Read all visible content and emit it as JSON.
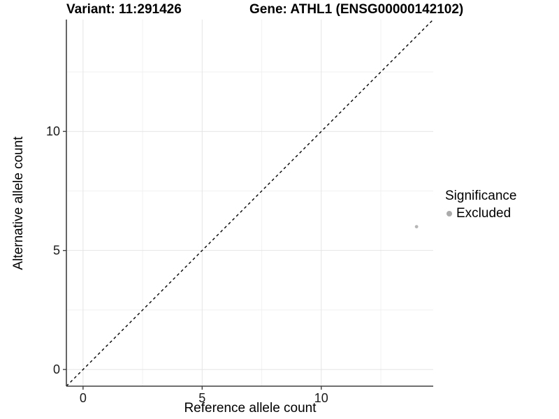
{
  "titles": {
    "variant": "Variant: 11:291426",
    "gene": "Gene: ATHL1 (ENSG00000142102)"
  },
  "chart_data": {
    "type": "scatter",
    "title": "Variant: 11:291426  /  Gene: ATHL1 (ENSG00000142102)",
    "xlabel": "Reference allele count",
    "ylabel": "Alternative allele count",
    "xlim": [
      -0.7,
      14.7
    ],
    "ylim": [
      -0.7,
      14.7
    ],
    "x_major_ticks": [
      0,
      5,
      10
    ],
    "y_major_ticks": [
      0,
      5,
      10
    ],
    "x_minor_ticks": [
      2.5,
      7.5,
      12.5
    ],
    "y_minor_ticks": [
      2.5,
      7.5,
      12.5
    ],
    "grid": "major and minor gridlines on, white panel background",
    "identity_line": {
      "style": "dashed",
      "x1": -0.7,
      "y1": -0.7,
      "x2": 14.7,
      "y2": 14.7,
      "color": "#000000"
    },
    "series": [
      {
        "name": "Excluded",
        "color": "#b6b6b6",
        "points": [
          {
            "x": 14,
            "y": 6
          }
        ]
      }
    ],
    "legend": {
      "title": "Significance",
      "position": "right",
      "entries": [
        {
          "label": "Excluded",
          "color": "#ababab"
        }
      ]
    }
  },
  "colors": {
    "background": "#ffffff",
    "grid_major": "#e4e4e4",
    "grid_minor": "#f1f1f1",
    "axis_line": "#404040",
    "tick_label": "#1a1a1a",
    "title_text": "#000000"
  }
}
